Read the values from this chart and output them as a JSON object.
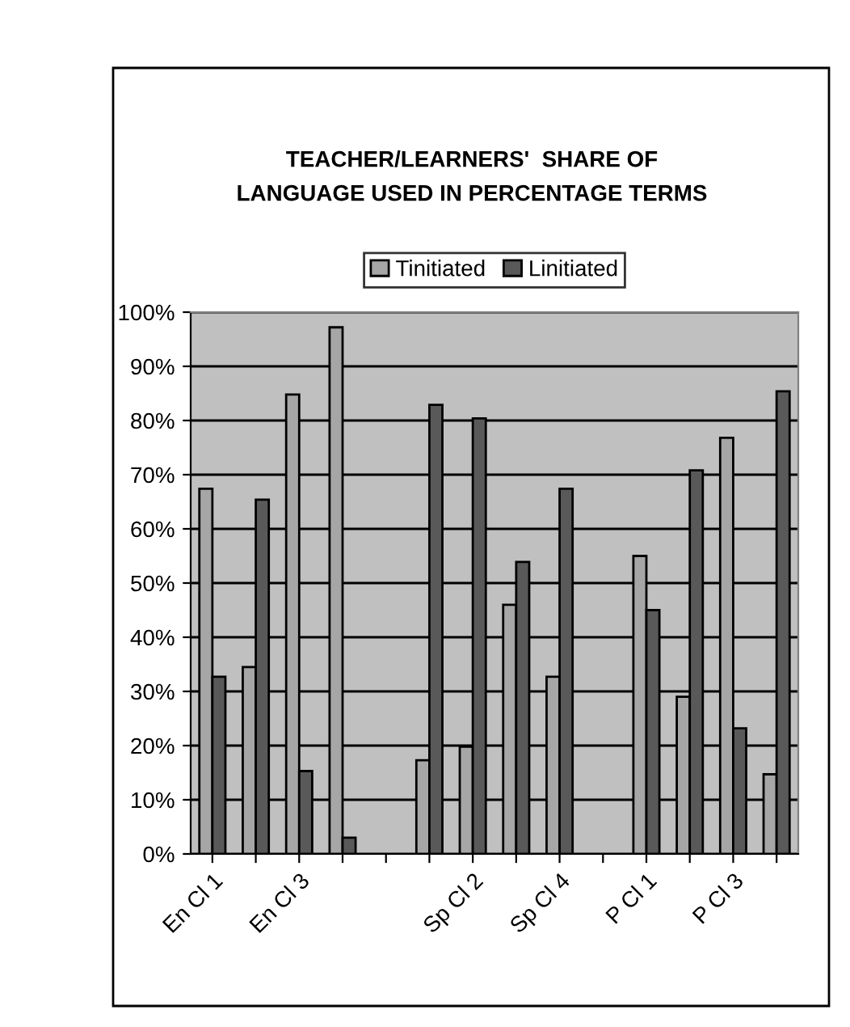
{
  "chart_data": {
    "type": "bar",
    "title": "TEACHER/LEARNERS'  SHARE OF\nLANGUAGE USED IN PERCENTAGE TERMS",
    "categories": [
      "En Cl 1",
      null,
      "En Cl 3",
      null,
      null,
      null,
      "Sp Cl 2",
      null,
      "Sp Cl 4",
      null,
      "P Cl 1",
      null,
      "P Cl 3",
      null
    ],
    "series": [
      {
        "name": "Tinitiated",
        "color": "#a6a6a6",
        "values": [
          67.4,
          34.5,
          84.8,
          97.2,
          null,
          17.3,
          19.8,
          46,
          32.7,
          null,
          55,
          29,
          76.8,
          14.7
        ]
      },
      {
        "name": "Linitiated",
        "color": "#595959",
        "values": [
          32.7,
          65.4,
          15.3,
          3,
          null,
          82.9,
          80.4,
          53.9,
          67.4,
          null,
          45,
          70.8,
          23.2,
          85.4
        ]
      }
    ],
    "ylim": [
      0,
      100
    ],
    "yticks": [
      {
        "value": 0,
        "label": "0%"
      },
      {
        "value": 10,
        "label": "10%"
      },
      {
        "value": 20,
        "label": "20%"
      },
      {
        "value": 30,
        "label": "30%"
      },
      {
        "value": 40,
        "label": "40%"
      },
      {
        "value": 50,
        "label": "50%"
      },
      {
        "value": 60,
        "label": "60%"
      },
      {
        "value": 70,
        "label": "70%"
      },
      {
        "value": 80,
        "label": "80%"
      },
      {
        "value": 90,
        "label": "90%"
      },
      {
        "value": 100,
        "label": "100%"
      }
    ],
    "grid": "y",
    "legend": "top"
  }
}
